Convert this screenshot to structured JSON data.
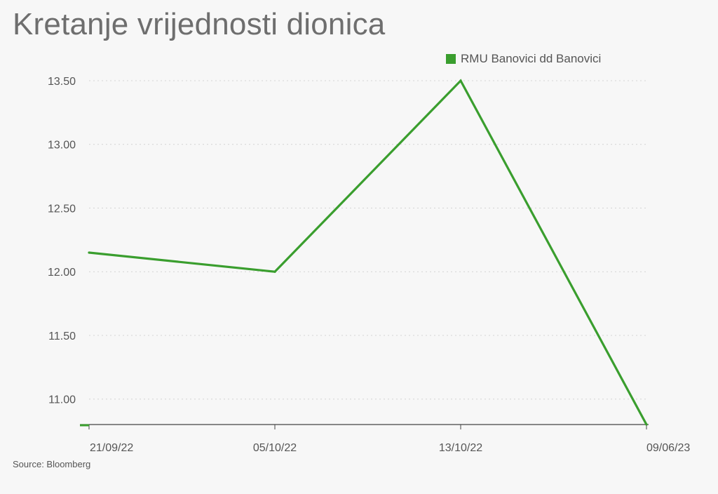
{
  "title": "Kretanje vrijednosti dionica",
  "source": "Source: Bloomberg",
  "chart_data": {
    "type": "line",
    "title": "Kretanje vrijednosti dionica",
    "xlabel": "",
    "ylabel": "",
    "x": [
      "21/09/22",
      "05/10/22",
      "13/10/22",
      "09/06/23"
    ],
    "series": [
      {
        "name": "RMU Banovici dd Banovici",
        "values": [
          12.15,
          12.0,
          13.5,
          10.8
        ],
        "color": "#3a9e2e"
      }
    ],
    "ylim": [
      10.8,
      13.5
    ],
    "yticks": [
      "11.00",
      "11.50",
      "12.00",
      "12.50",
      "13.00",
      "13.50"
    ],
    "grid": "horizontal-dotted",
    "legend_position": "top-right"
  }
}
